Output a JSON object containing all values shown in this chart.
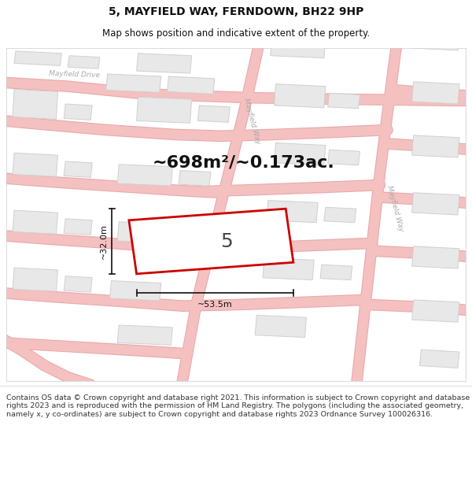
{
  "title": "5, MAYFIELD WAY, FERNDOWN, BH22 9HP",
  "subtitle": "Map shows position and indicative extent of the property.",
  "area_label": "~698m²/~0.173ac.",
  "width_label": "~53.5m",
  "height_label": "~32.0m",
  "plot_number": "5",
  "footer": "Contains OS data © Crown copyright and database right 2021. This information is subject to Crown copyright and database rights 2023 and is reproduced with the permission of HM Land Registry. The polygons (including the associated geometry, namely x, y co-ordinates) are subject to Crown copyright and database rights 2023 Ordnance Survey 100026316.",
  "map_bg": "#ffffff",
  "road_color": "#f5c0c0",
  "road_border": "#e8a8a8",
  "building_color": "#e8e8e8",
  "building_border": "#d0d0d0",
  "plot_border": "#cc0000",
  "dim_color": "#111111",
  "street_label_color": "#aaaaaa",
  "title_color": "#111111",
  "footer_color": "#333333",
  "title_fontsize": 10,
  "subtitle_fontsize": 8.5,
  "area_fontsize": 16,
  "dim_fontsize": 8,
  "plot_num_fontsize": 18,
  "footer_fontsize": 6.8
}
